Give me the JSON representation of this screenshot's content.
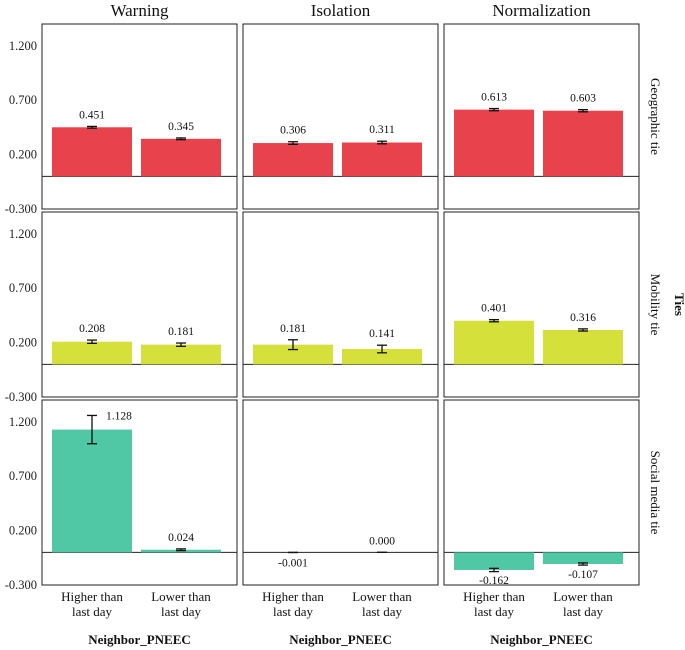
{
  "chart_data": {
    "type": "bar",
    "facets": {
      "columns": [
        "Warning",
        "Isolation",
        "Normalization"
      ],
      "rows": [
        "Geographic tie",
        "Mobility tie",
        "Social media  tie"
      ]
    },
    "categories": [
      "Higher than last day",
      "Lower than last day"
    ],
    "category_lines": [
      [
        "Higher than",
        "last day"
      ],
      [
        "Lower than",
        "last day"
      ]
    ],
    "xlabel": "Neighbor_PNEEC",
    "ylabel": "Ties",
    "ylim": [
      -0.3,
      1.4
    ],
    "yticks": [
      "-0.300",
      "0.200",
      "0.700",
      "1.200"
    ],
    "colors": {
      "Geographic tie": "#e8434c",
      "Mobility tie": "#d6e03a",
      "Social media  tie": "#51c8a5"
    },
    "panels": [
      {
        "col": "Warning",
        "row": "Geographic tie",
        "values": [
          0.451,
          0.345
        ],
        "labels": [
          "0.451",
          "0.345"
        ],
        "errors": [
          0.008,
          0.008
        ]
      },
      {
        "col": "Isolation",
        "row": "Geographic tie",
        "values": [
          0.306,
          0.311
        ],
        "labels": [
          "0.306",
          "0.311"
        ],
        "errors": [
          0.012,
          0.012
        ]
      },
      {
        "col": "Normalization",
        "row": "Geographic tie",
        "values": [
          0.613,
          0.603
        ],
        "labels": [
          "0.613",
          "0.603"
        ],
        "errors": [
          0.01,
          0.01
        ]
      },
      {
        "col": "Warning",
        "row": "Mobility tie",
        "values": [
          0.208,
          0.181
        ],
        "labels": [
          "0.208",
          "0.181"
        ],
        "errors": [
          0.015,
          0.015
        ]
      },
      {
        "col": "Isolation",
        "row": "Mobility tie",
        "values": [
          0.181,
          0.141
        ],
        "labels": [
          "0.181",
          "0.141"
        ],
        "errors": [
          0.045,
          0.035
        ]
      },
      {
        "col": "Normalization",
        "row": "Mobility tie",
        "values": [
          0.401,
          0.316
        ],
        "labels": [
          "0.401",
          "0.316"
        ],
        "errors": [
          0.01,
          0.01
        ]
      },
      {
        "col": "Warning",
        "row": "Social media  tie",
        "values": [
          1.128,
          0.024
        ],
        "labels": [
          "1.128",
          "0.024"
        ],
        "errors": [
          0.13,
          0.008
        ]
      },
      {
        "col": "Isolation",
        "row": "Social media  tie",
        "values": [
          -0.001,
          0.0
        ],
        "labels": [
          "-0.001",
          "0.000"
        ],
        "errors": [
          0.0,
          0.0
        ]
      },
      {
        "col": "Normalization",
        "row": "Social media  tie",
        "values": [
          -0.162,
          -0.107
        ],
        "labels": [
          "-0.162",
          "-0.107"
        ],
        "errors": [
          0.015,
          0.01
        ]
      }
    ]
  }
}
